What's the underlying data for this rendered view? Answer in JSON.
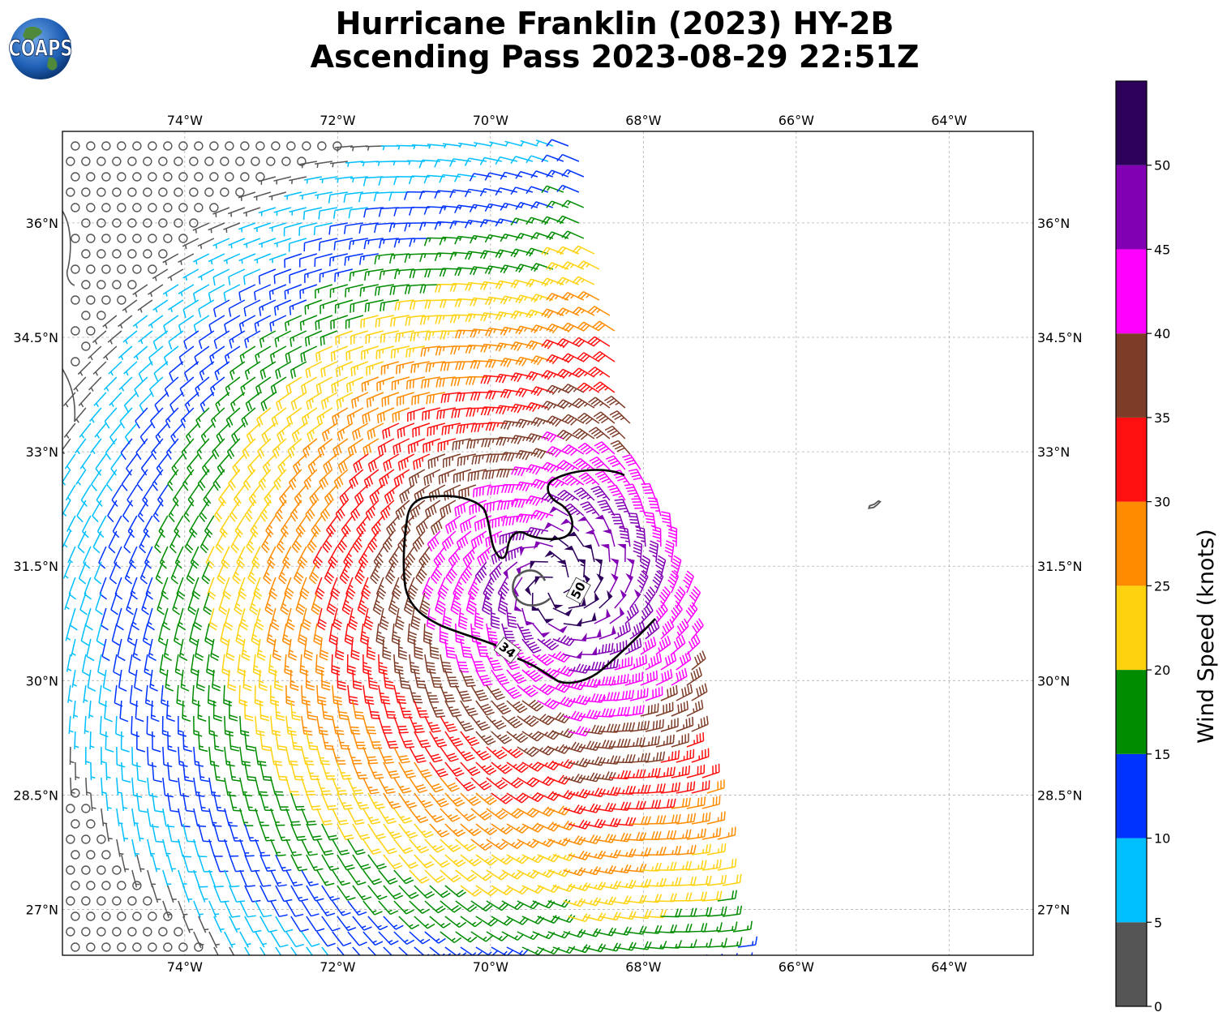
{
  "title": {
    "line1": "Hurricane Franklin (2023) HY-2B",
    "line2": "Ascending Pass 2023-08-29 22:51Z"
  },
  "logo": {
    "text": "COAPS",
    "icon": "globe-icon"
  },
  "map": {
    "lon_range": [
      -75.6,
      -62.9
    ],
    "lat_range": [
      26.4,
      37.2
    ],
    "lon_ticks": [
      {
        "value": -74,
        "label": "74°W"
      },
      {
        "value": -72,
        "label": "72°W"
      },
      {
        "value": -70,
        "label": "70°W"
      },
      {
        "value": -68,
        "label": "68°W"
      },
      {
        "value": -66,
        "label": "66°W"
      },
      {
        "value": -64,
        "label": "64°W"
      }
    ],
    "lat_ticks": [
      {
        "value": 36,
        "label": "36°N"
      },
      {
        "value": 34.5,
        "label": "34.5°N"
      },
      {
        "value": 33,
        "label": "33°N"
      },
      {
        "value": 31.5,
        "label": "31.5°N"
      },
      {
        "value": 30,
        "label": "30°N"
      },
      {
        "value": 28.5,
        "label": "28.5°N"
      },
      {
        "value": 27,
        "label": "27°N"
      }
    ],
    "gridlines": true,
    "storm_center": {
      "lon": -69.15,
      "lat": 31.25
    },
    "contours": [
      {
        "label": "34",
        "label_at": {
          "lon": -69.78,
          "lat": 30.4
        }
      },
      {
        "label": "50",
        "label_at": {
          "lon": -68.85,
          "lat": 31.18
        }
      }
    ]
  },
  "colorbar": {
    "label": "Wind Speed (knots)",
    "bins": [
      {
        "min": 0,
        "max": 5,
        "color": "#555555"
      },
      {
        "min": 5,
        "max": 10,
        "color": "#00bfff"
      },
      {
        "min": 10,
        "max": 15,
        "color": "#0033ff"
      },
      {
        "min": 15,
        "max": 20,
        "color": "#008c00"
      },
      {
        "min": 20,
        "max": 25,
        "color": "#ffd20f"
      },
      {
        "min": 25,
        "max": 30,
        "color": "#ff8c00"
      },
      {
        "min": 30,
        "max": 35,
        "color": "#ff0f0f"
      },
      {
        "min": 35,
        "max": 40,
        "color": "#7d3c28"
      },
      {
        "min": 40,
        "max": 45,
        "color": "#ff00ff"
      },
      {
        "min": 45,
        "max": 50,
        "color": "#8200b4"
      },
      {
        "min": 50,
        "max": 55,
        "color": "#2d005a"
      }
    ],
    "tick_labels": [
      "0",
      "5",
      "10",
      "15",
      "20",
      "25",
      "30",
      "35",
      "40",
      "45",
      "50"
    ]
  }
}
